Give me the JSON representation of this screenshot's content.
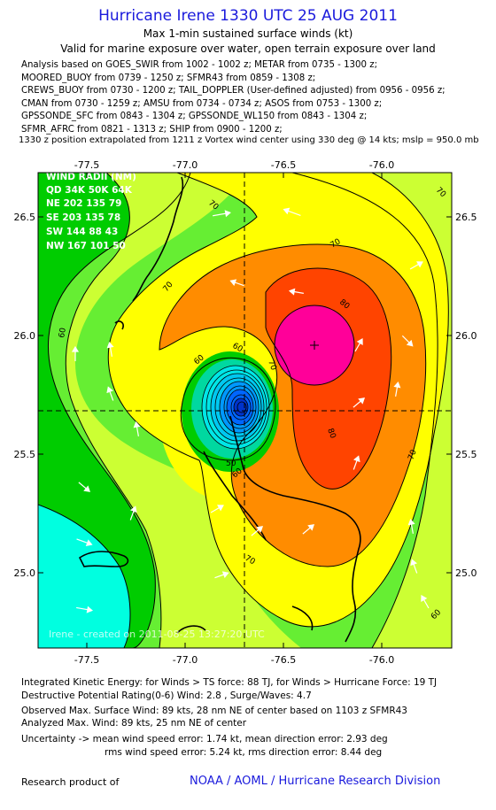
{
  "header": {
    "title": "Hurricane Irene 1330 UTC 25 AUG 2011",
    "subtitle1": "Max 1-min sustained surface winds (kt)",
    "subtitle2": "Valid for marine exposure over water, open terrain exposure over land"
  },
  "analysis_sources": [
    "Analysis based on GOES_SWIR from 1002 - 1002 z; METAR from 0735 - 1300 z;",
    "MOORED_BUOY from 0739 - 1250 z; SFMR43 from 0859 - 1308 z;",
    "CREWS_BUOY from 0730 - 1200 z; TAIL_DOPPLER (User-defined adjusted) from 0956 - 0956 z;",
    "CMAN from 0730 - 1259 z; AMSU from 0734 - 0734 z; ASOS from 0753 - 1300 z;",
    "GPSSONDE_SFC from 0843 - 1304 z; GPSSONDE_WL150 from 0843 - 1304 z;",
    "SFMR_AFRC from 0821 - 1313 z; SHIP from 0900 - 1200 z;"
  ],
  "extrapolation_note": "1330 z position extrapolated from 1211 z Vortex wind center using 330 deg @ 14 kts; mslp = 950.0 mb",
  "map": {
    "lon_ticks": [
      "-77.5",
      "-77.0",
      "-76.5",
      "-76.0"
    ],
    "lat_ticks": [
      "26.5",
      "26.0",
      "25.5",
      "25.0"
    ],
    "wind_radii": {
      "title": "WIND RADII (NM)",
      "header": "QD 34K 50K 64K",
      "rows": [
        "NE 202 135 79",
        "SE 203 135 78",
        "SW 144 88 43",
        "NW 167 101 50"
      ]
    },
    "contour_labels": [
      "70",
      "70",
      "70",
      "80",
      "60",
      "60",
      "60",
      "70",
      "50",
      "60",
      "80",
      "70",
      "70",
      "60"
    ],
    "credit": "Irene - created on 2011-08-25 13:27:20 UTC",
    "colors": {
      "cyan": "#00ffe0",
      "green": "#00cc00",
      "lightgreen": "#66ee33",
      "yellowgreen": "#ccff33",
      "yellow": "#ffff00",
      "orange": "#ff8c00",
      "redorange": "#ff4400",
      "magenta": "#ff0099",
      "eye_blue": "#0055ff"
    }
  },
  "stats": {
    "ike": "Integrated Kinetic Energy:  for Winds > TS force: 88 TJ,  for Winds > Hurricane Force: 19 TJ",
    "dpr": "Destructive Potential Rating(0-6)   Wind: 2.8 , Surge/Waves: 4.7",
    "obs_max": "Observed Max. Surface Wind: 89 kts, 28 nm NE of center based on 1103 z SFMR43",
    "ana_max": "Analyzed Max. Wind: 89 kts, 25 nm NE of center",
    "unc1": "Uncertainty -> mean wind speed error: 1.74 kt,   mean direction error: 2.93 deg",
    "unc2": "rms wind speed error: 5.24 kt,   rms direction error: 8.44 deg"
  },
  "footer": {
    "left": "Research product of",
    "right": "NOAA / AOML / Hurricane Research Division"
  }
}
